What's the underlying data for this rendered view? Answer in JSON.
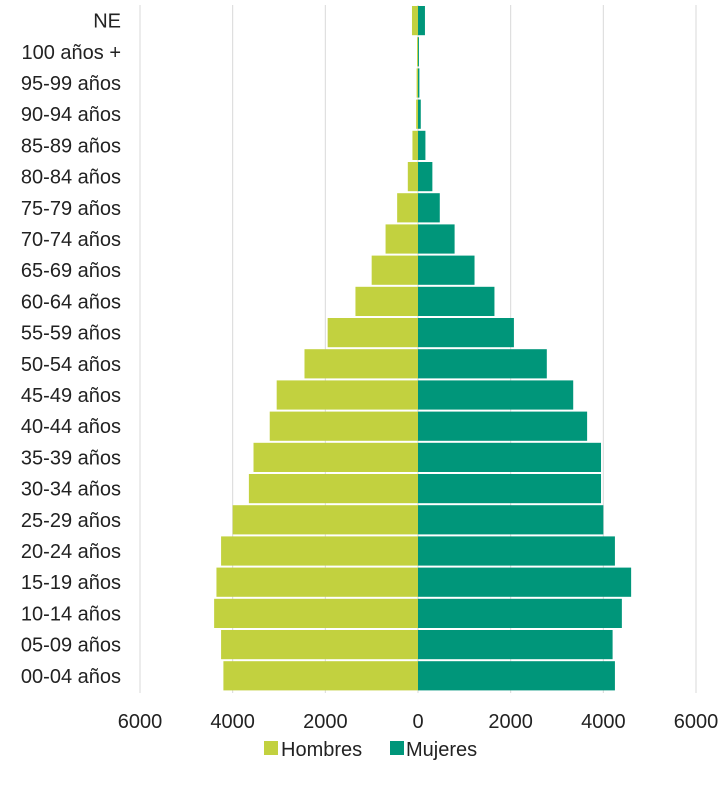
{
  "chart_data": {
    "type": "bar",
    "orientation": "horizontal-population-pyramid",
    "categories": [
      "00-04 años",
      "05-09 años",
      "10-14 años",
      "15-19 años",
      "20-24 años",
      "25-29 años",
      "30-34 años",
      "35-39 años",
      "40-44 años",
      "45-49 años",
      "50-54 años",
      "55-59 años",
      "60-64 años",
      "65-69 años",
      "70-74 años",
      "75-79 años",
      "80-84 años",
      "85-89 años",
      "90-94 años",
      "95-99 años",
      "100 años +",
      "NE"
    ],
    "series": [
      {
        "name": "Hombres",
        "color": "#c2d13f",
        "values": [
          4200,
          4250,
          4400,
          4350,
          4250,
          4000,
          3650,
          3550,
          3200,
          3050,
          2450,
          1950,
          1350,
          1000,
          700,
          450,
          220,
          120,
          40,
          30,
          20,
          130
        ]
      },
      {
        "name": "Mujeres",
        "color": "#00967a",
        "values": [
          4250,
          4200,
          4400,
          4600,
          4250,
          4000,
          3950,
          3950,
          3650,
          3350,
          2780,
          2070,
          1650,
          1220,
          790,
          470,
          310,
          160,
          60,
          30,
          20,
          150
        ]
      }
    ],
    "xlim": [
      -6000,
      6000
    ],
    "x_tick_values": [
      -6000,
      -4000,
      -2000,
      0,
      2000,
      4000,
      6000
    ],
    "x_tick_labels": [
      "6000",
      "4000",
      "2000",
      "0",
      "2000",
      "4000",
      "6000"
    ],
    "grid": "vertical",
    "legend": "bottom",
    "title": "",
    "xlabel": "",
    "ylabel": ""
  }
}
